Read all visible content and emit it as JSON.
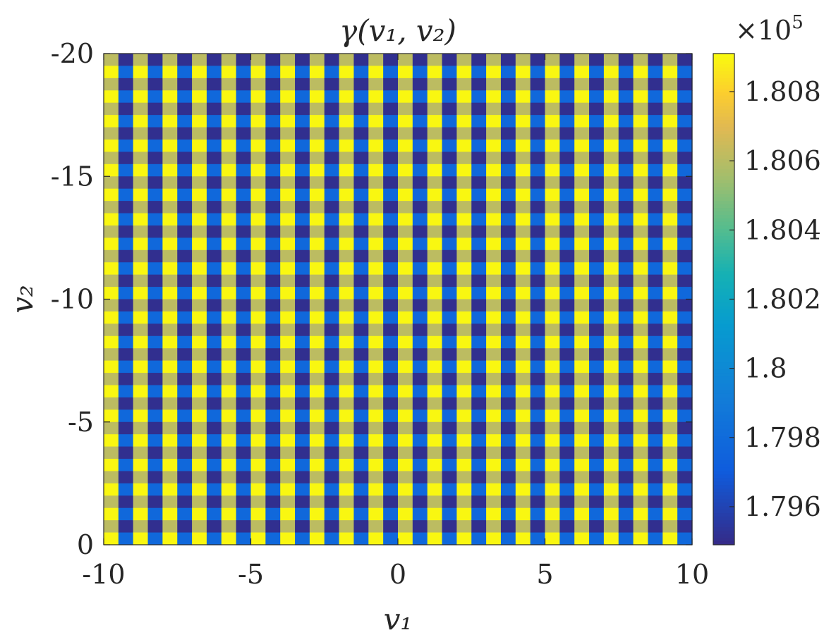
{
  "chart_data": {
    "type": "heatmap",
    "title": "γ(v₁, v₂)",
    "xlabel": "v₁",
    "ylabel": "v₂",
    "xlim": [
      -10,
      10
    ],
    "ylim": [
      0,
      -20
    ],
    "x_ticks": [
      -10,
      -5,
      0,
      5,
      10
    ],
    "x_tick_labels": [
      "-10",
      "-5",
      "0",
      "5",
      "10"
    ],
    "y_ticks": [
      -20,
      -15,
      -10,
      -5,
      0
    ],
    "y_tick_labels": [
      "-20",
      "-15",
      "-10",
      "-5",
      "0"
    ],
    "y_axis_direction": "reversed (-20 at top, 0 at bottom)",
    "grid": false,
    "colormap": "parula",
    "colorbar": {
      "range": [
        1.7949,
        1.8091
      ],
      "ticks": [
        1.796,
        1.798,
        1.8,
        1.802,
        1.804,
        1.806,
        1.808
      ],
      "tick_labels": [
        "1.796",
        "1.798",
        "1.8",
        "1.802",
        "1.804",
        "1.806",
        "1.808"
      ],
      "multiplier_label": "×10",
      "multiplier_exponent": "5",
      "position": "right"
    },
    "grid_cells": {
      "x_columns": 40,
      "y_rows": 40,
      "pattern": "column-alternating checkerboard: even columns bright (yellow/gold), odd columns dark (blue/indigo); rows alternate shade within each column",
      "value_levels": {
        "bright_high": 1.809,
        "bright_low": 1.8061,
        "dark_high": 1.7978,
        "dark_low": 1.7951
      }
    }
  }
}
